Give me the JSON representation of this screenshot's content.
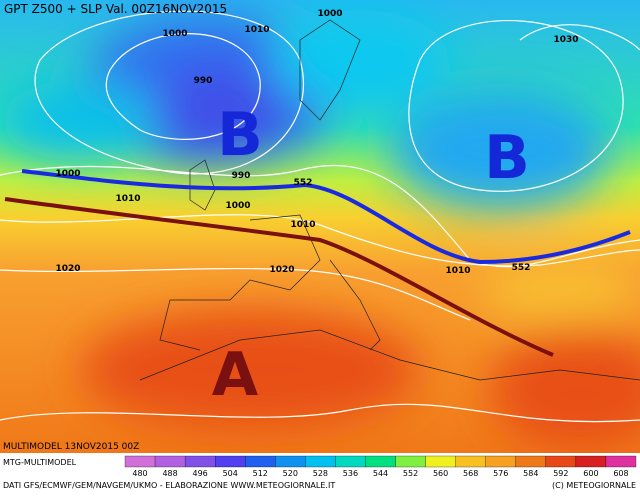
{
  "header": {
    "title": "GPT Z500 + SLP Val. 00Z16NOV2015"
  },
  "map_labels": [
    "1000",
    "1000",
    "1010",
    "1030",
    "990",
    "990",
    "1000",
    "1010",
    "1000",
    "552",
    "1010",
    "1020",
    "1020",
    "1010",
    "552"
  ],
  "pressure_centers": [
    "B",
    "B",
    "A"
  ],
  "footer": {
    "run": "MULTIMODEL 13NOV2015 00Z",
    "model": "MTG-MULTIMODEL",
    "source": "DATI GFS/ECMWF/GEM/NAVGEM/UKMO - ELABORAZIONE WWW.METEOGIORNALE.IT",
    "copyright": "(C) METEOGIORNALE"
  },
  "colorbar": {
    "values": [
      480,
      488,
      496,
      504,
      512,
      520,
      528,
      536,
      544,
      552,
      560,
      568,
      576,
      584,
      592,
      600,
      608
    ],
    "colors": [
      "#d070d8",
      "#b060e0",
      "#8050e8",
      "#5040f0",
      "#2060f0",
      "#1090f0",
      "#00c0f0",
      "#00d8c0",
      "#00e080",
      "#80f040",
      "#f0f020",
      "#f8c020",
      "#f8a020",
      "#f07818",
      "#e84818",
      "#d82020",
      "#e030a0"
    ]
  }
}
